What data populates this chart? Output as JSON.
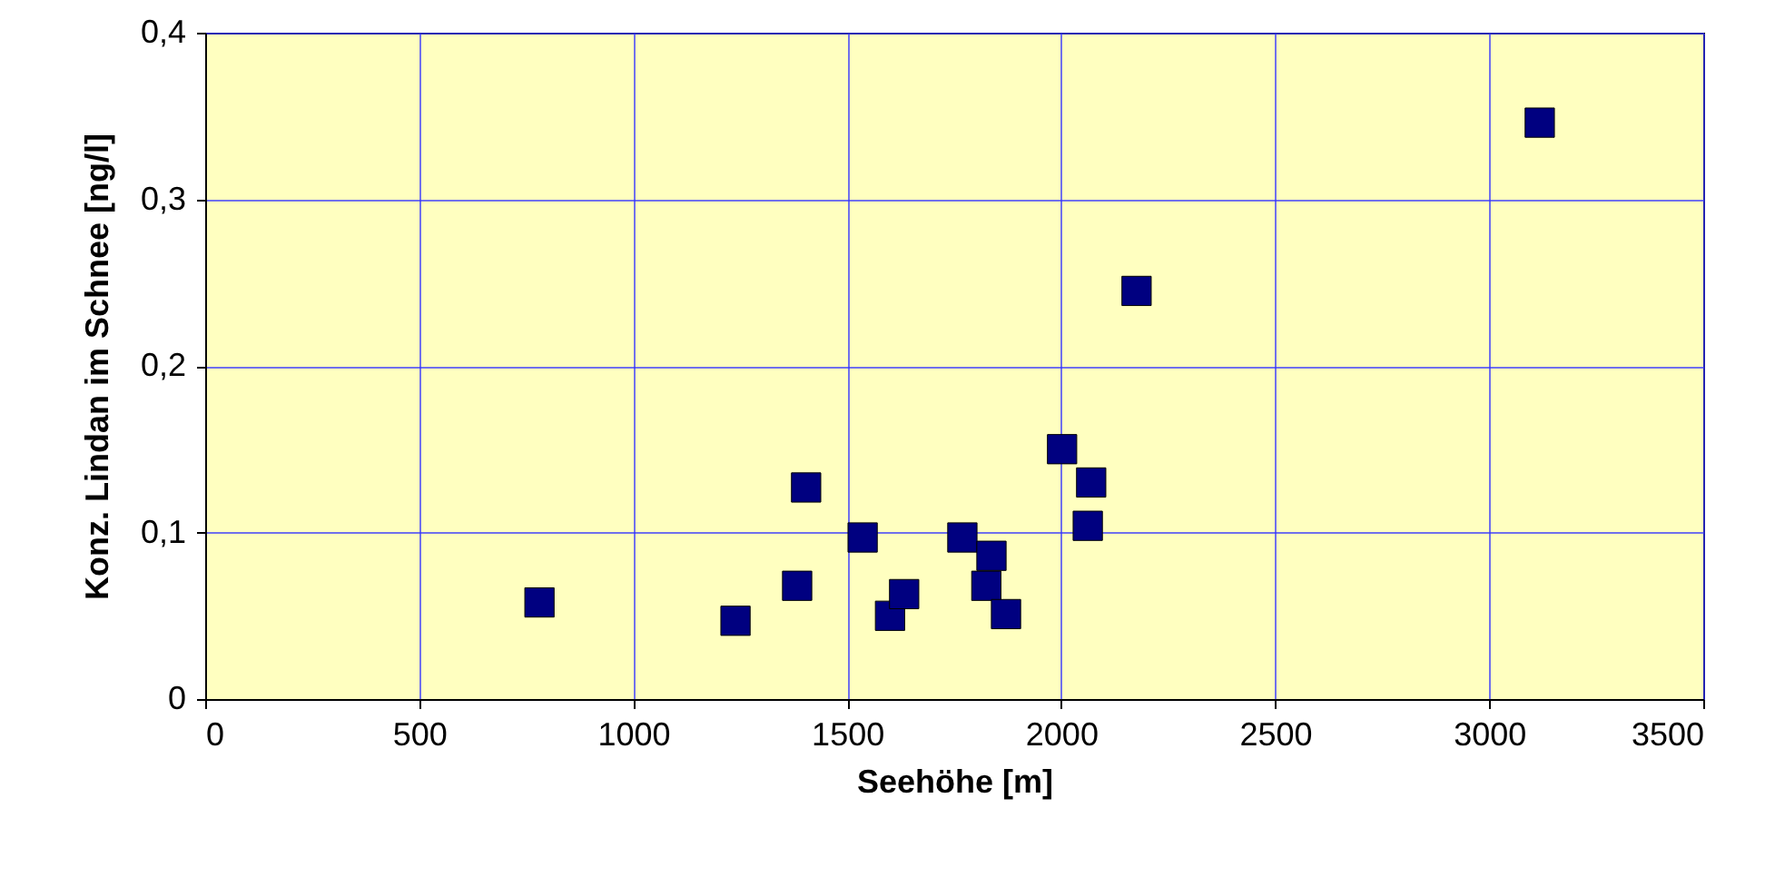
{
  "chart_data": {
    "type": "scatter",
    "xlabel": "Seehöhe [m]",
    "ylabel": "Konz. Lindan im Schnee [ng/l]",
    "x": [
      781,
      1239,
      1383,
      1404,
      1536,
      1600,
      1633,
      1769,
      1837,
      1825,
      1871,
      2002,
      2070,
      2062,
      2176,
      3118
    ],
    "values": [
      0.058,
      0.047,
      0.068,
      0.127,
      0.097,
      0.05,
      0.063,
      0.097,
      0.086,
      0.068,
      0.051,
      0.15,
      0.13,
      0.104,
      0.245,
      0.346
    ],
    "color": "#000080",
    "marker": "square",
    "grid": true,
    "xlim": [
      0,
      3500
    ],
    "xticks": [
      0,
      500,
      1000,
      1500,
      2000,
      2500,
      3000,
      3500
    ],
    "ylim": [
      0,
      0.4
    ],
    "yticks": [
      0,
      {
        "value": 0.1,
        "label": "0,1"
      },
      {
        "value": 0.2,
        "label": "0,2"
      },
      {
        "value": 0.3,
        "label": "0,3"
      },
      {
        "value": 0.4,
        "label": "0,4"
      }
    ]
  }
}
